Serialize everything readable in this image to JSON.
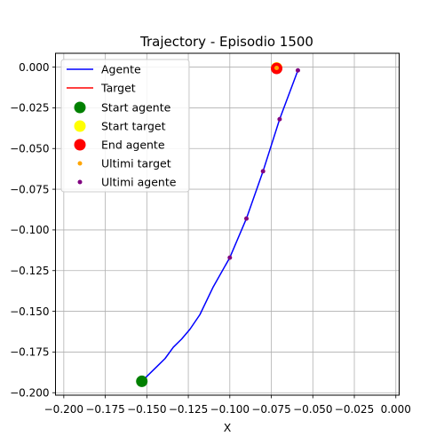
{
  "chart_data": {
    "type": "line",
    "title": "Trajectory - Episodio 1500",
    "xlabel": "X",
    "ylabel": "",
    "xlim": [
      -0.205,
      0.002
    ],
    "ylim": [
      -0.2015,
      0.0085
    ],
    "xticks": [
      -0.2,
      -0.175,
      -0.15,
      -0.125,
      -0.1,
      -0.075,
      -0.05,
      -0.025,
      0.0
    ],
    "xtick_labels": [
      "−0.200",
      "−0.175",
      "−0.150",
      "−0.125",
      "−0.100",
      "−0.075",
      "−0.050",
      "−0.025",
      "0.000"
    ],
    "yticks": [
      0.0,
      -0.025,
      -0.05,
      -0.075,
      -0.1,
      -0.125,
      -0.15,
      -0.175,
      -0.2
    ],
    "ytick_labels": [
      "0.000",
      "−0.025",
      "−0.050",
      "−0.075",
      "−0.100",
      "−0.125",
      "−0.150",
      "−0.175",
      "−0.200"
    ],
    "grid": true,
    "legend_placement": "upper-left",
    "series": [
      {
        "name": "Agente",
        "kind": "line",
        "color": "#0000ff",
        "x": [
          -0.153,
          -0.149,
          -0.144,
          -0.139,
          -0.134,
          -0.129,
          -0.124,
          -0.118,
          -0.11,
          -0.1,
          -0.09,
          -0.08,
          -0.07,
          -0.059
        ],
        "y": [
          -0.193,
          -0.189,
          -0.184,
          -0.179,
          -0.172,
          -0.167,
          -0.161,
          -0.152,
          -0.135,
          -0.117,
          -0.093,
          -0.064,
          -0.032,
          -0.002
        ]
      },
      {
        "name": "Target",
        "kind": "line",
        "color": "#ff0000",
        "x": [
          -0.0718,
          -0.0715
        ],
        "y": [
          -0.0005,
          -0.0008
        ]
      },
      {
        "name": "Start agente",
        "kind": "marker",
        "color": "#008000",
        "size": "large",
        "x": [
          -0.153
        ],
        "y": [
          -0.193
        ]
      },
      {
        "name": "Start target",
        "kind": "marker",
        "color": "#ffff00",
        "size": "large",
        "x": [
          -0.0718
        ],
        "y": [
          -0.0005
        ]
      },
      {
        "name": "End agente",
        "kind": "marker",
        "color": "#ff0000",
        "size": "large",
        "x": [
          -0.0718
        ],
        "y": [
          -0.0008
        ]
      },
      {
        "name": "Ultimi target",
        "kind": "scatter",
        "color": "#ffa500",
        "size": "small",
        "x": [
          -0.0718
        ],
        "y": [
          -0.0005
        ]
      },
      {
        "name": "Ultimi agente",
        "kind": "scatter",
        "color": "#800080",
        "size": "small",
        "x": [
          -0.059,
          -0.07,
          -0.08,
          -0.09,
          -0.1
        ],
        "y": [
          -0.002,
          -0.032,
          -0.064,
          -0.093,
          -0.117
        ]
      }
    ]
  }
}
